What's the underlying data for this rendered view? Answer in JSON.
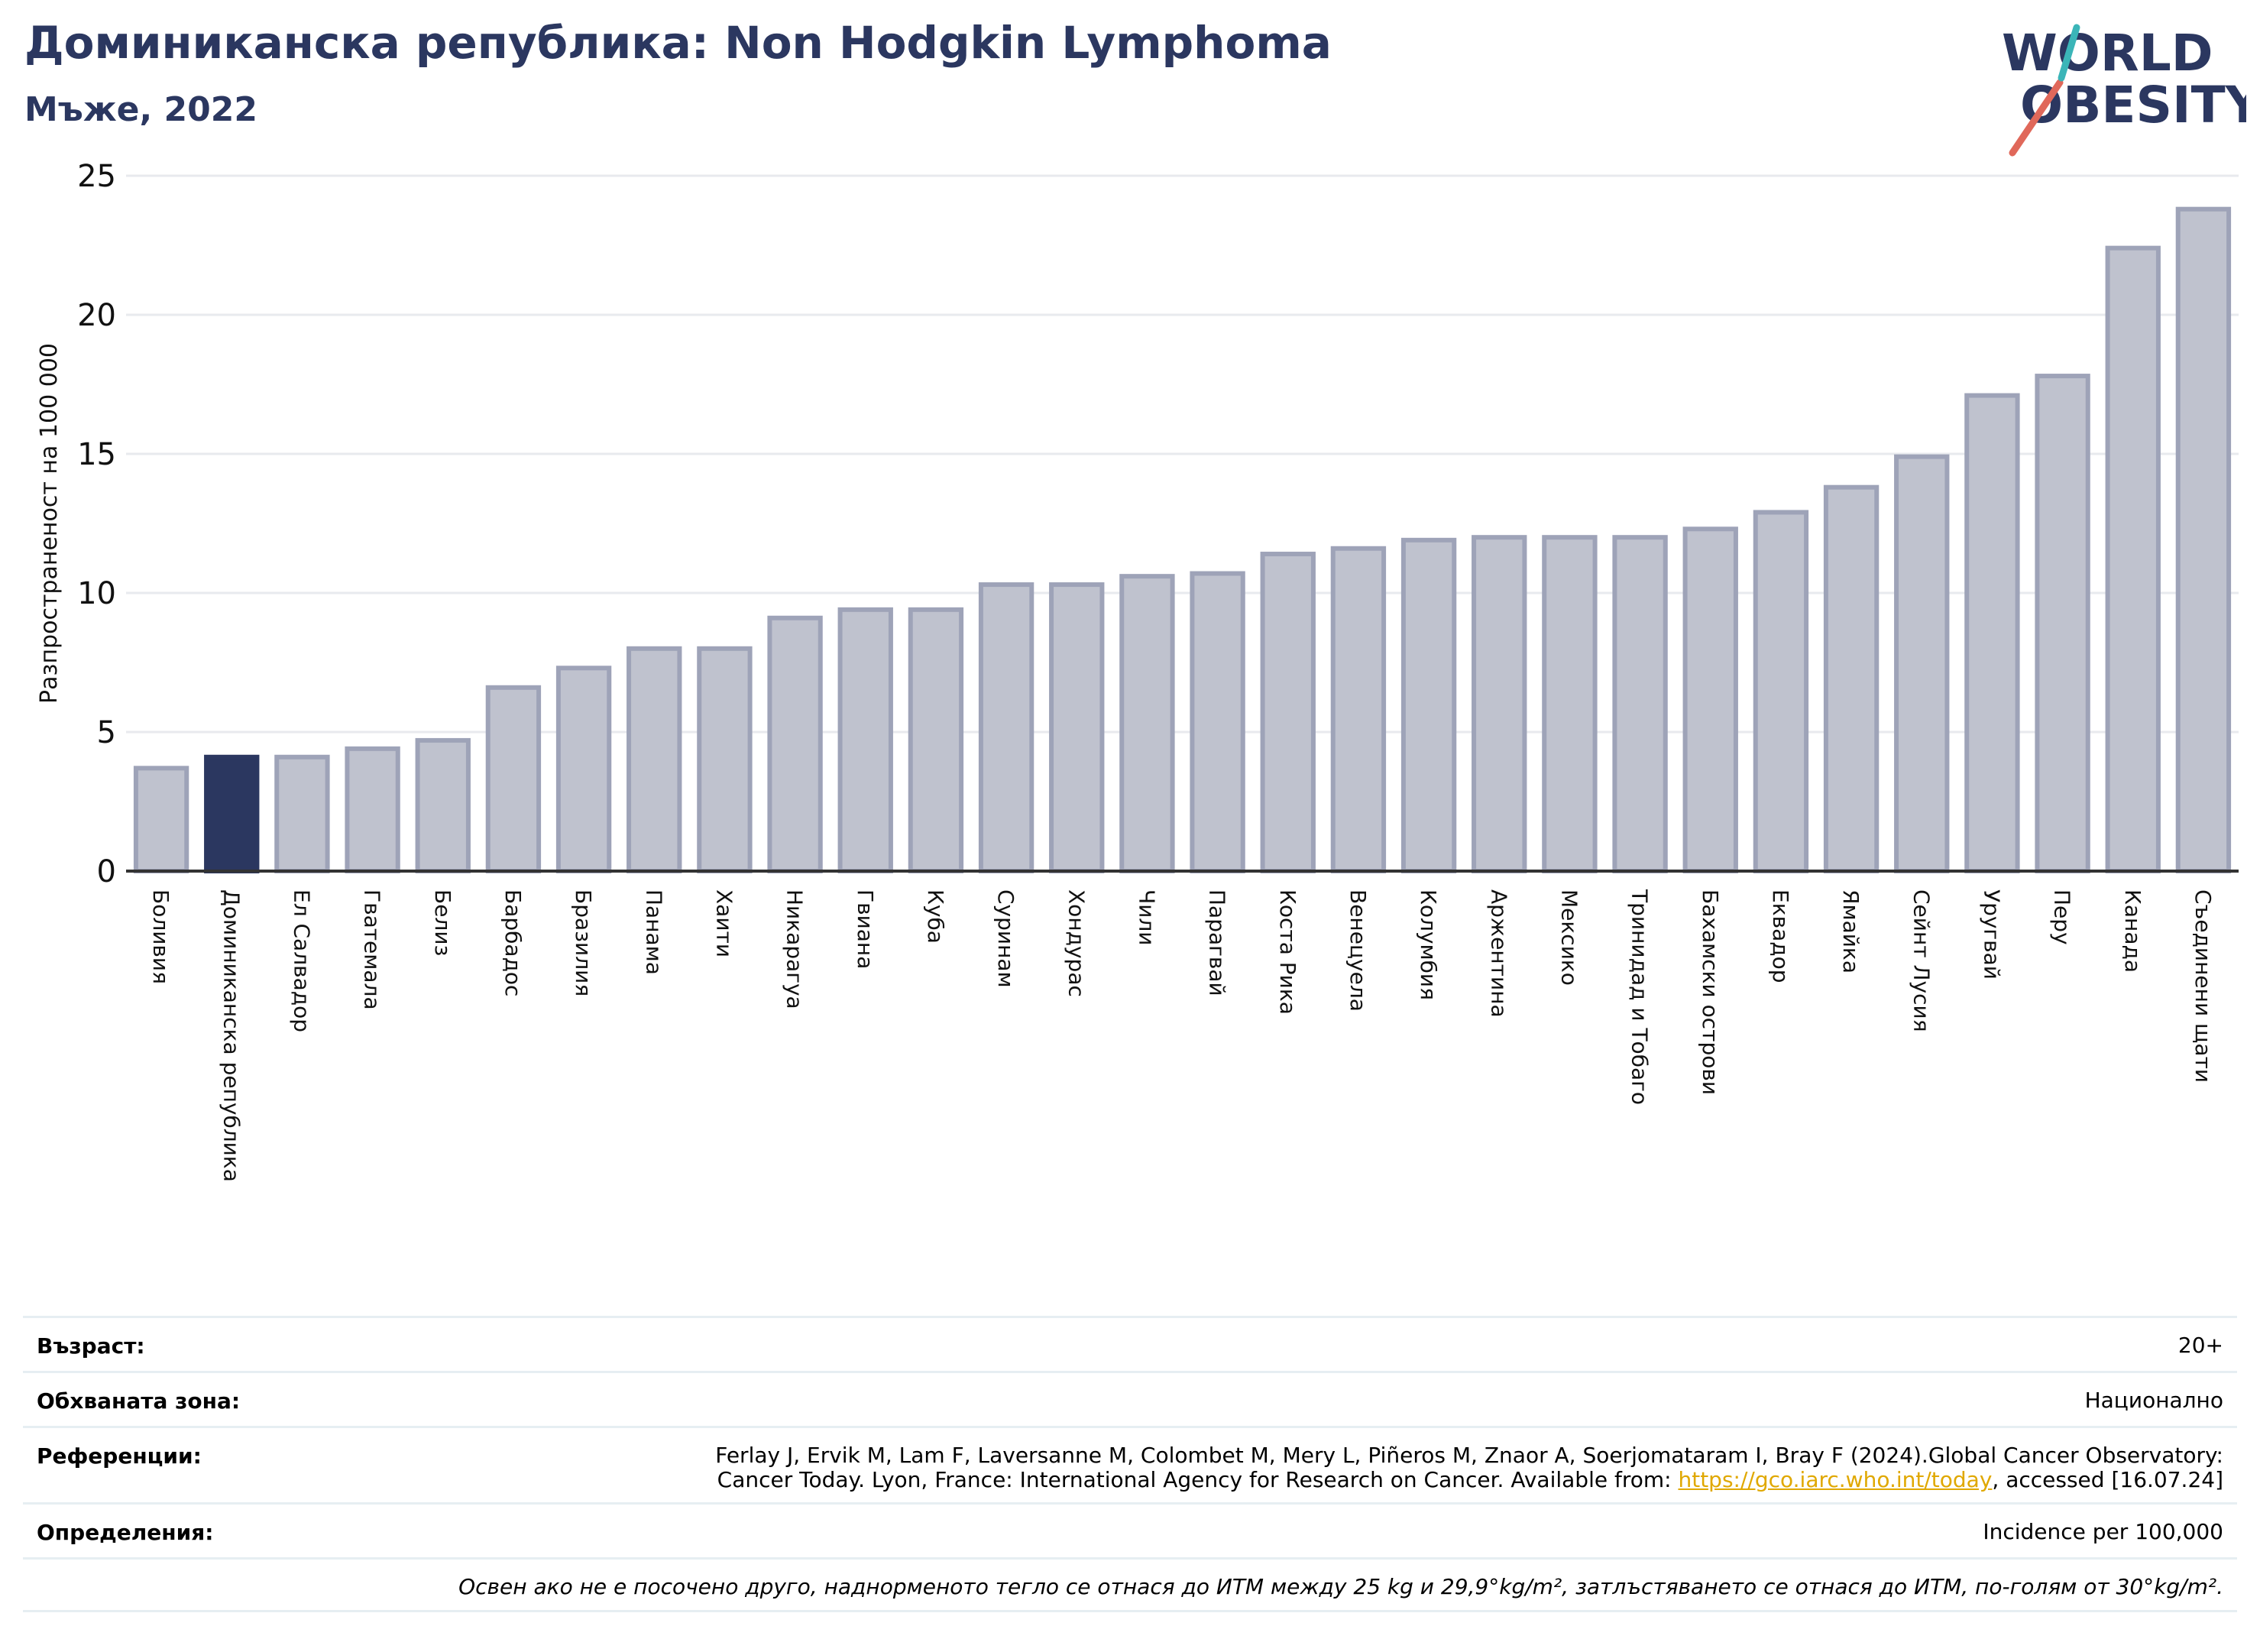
{
  "header": {
    "title": "Доминиканска република: Non Hodgkin Lymphoma",
    "subtitle": "Мъже, 2022"
  },
  "logo": {
    "line1": "WORLD",
    "line2": "OBESITY"
  },
  "colors": {
    "highlight": "#2b3760",
    "bar_fill": "#bfc2ce",
    "bar_stroke": "#9ea3b8",
    "grid": "#e8eaee",
    "axis": "#333333",
    "logo_text": "#2b3760",
    "logo_slash_red": "#e0685a",
    "logo_slash_teal": "#3bb5b8"
  },
  "chart_data": {
    "type": "bar",
    "ylabel": "Разпространеност  на 100 000",
    "ylim": [
      0,
      25
    ],
    "yticks": [
      0,
      5,
      10,
      15,
      20,
      25
    ],
    "grid": true,
    "highlight_category": "Доминиканска република",
    "categories": [
      "Боливия",
      "Доминиканска република",
      "Ел Салвадор",
      "Гватемала",
      "Белиз",
      "Барбадос",
      "Бразилия",
      "Панама",
      "Хаити",
      "Никарагуа",
      "Гвиана",
      "Куба",
      "Суринам",
      "Хондурас",
      "Чили",
      "Парагвай",
      "Коста Рика",
      "Венецуела",
      "Колумбия",
      "Аржентина",
      "Мексико",
      "Тринидад и Тобаго",
      "Бахамски острови",
      "Еквадор",
      "Ямайка",
      "Сейнт Лусия",
      "Уругвай",
      "Перу",
      "Канада",
      "Съединени щати"
    ],
    "values": [
      3.7,
      4.1,
      4.1,
      4.4,
      4.7,
      6.6,
      7.3,
      8.0,
      8.0,
      9.1,
      9.4,
      9.4,
      10.3,
      10.3,
      10.6,
      10.7,
      11.4,
      11.6,
      11.9,
      12.0,
      12.0,
      12.0,
      12.3,
      12.9,
      13.8,
      14.9,
      17.1,
      17.8,
      22.4,
      23.8
    ]
  },
  "info": {
    "age_label": "Възраст:",
    "age_value": "20+",
    "area_label": "Обхваната зона:",
    "area_value": "Национално",
    "refs_label": "Референции:",
    "refs_line1": "Ferlay J, Ervik M, Lam F, Laversanne M, Colombet M, Mery L, Piñeros M, Znaor A, Soerjomataram I, Bray F (2024).Global Cancer Observatory:",
    "refs_line2_pre": "Cancer Today. Lyon, France: International Agency for Research on Cancer. Available from: ",
    "refs_link": "https://gco.iarc.who.int/today",
    "refs_line2_post": ", accessed [16.07.24]",
    "defs_label": "Определения:",
    "defs_value": "Incidence per 100,000",
    "note": "Освен ако не е посочено друго, наднорменото тегло се отнася до ИТМ между 25 kg и 29,9°kg/m², затлъстяването се отнася до ИТМ, по-голям от 30°kg/m²."
  }
}
